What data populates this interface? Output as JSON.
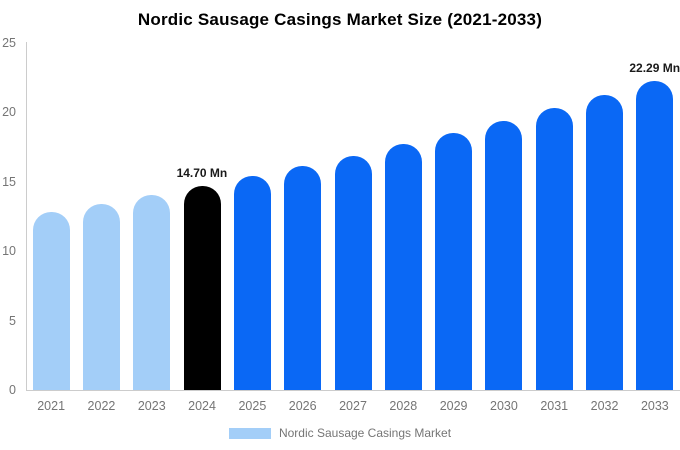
{
  "title": "Nordic Sausage Casings Market Size (2021-2033)",
  "legend": {
    "label": "Nordic Sausage Casings Market",
    "swatch_color": "#a3cef8"
  },
  "colors": {
    "historical_bar": "#a3cef8",
    "base_year_bar": "#000000",
    "forecast_bar": "#0a68f5",
    "axis_line": "#cccccc",
    "axis_text": "#757575",
    "data_label_text": "#1a1a1a"
  },
  "chart_data": {
    "type": "bar",
    "title": "Nordic Sausage Casings Market Size (2021-2033)",
    "categories": [
      "2021",
      "2022",
      "2023",
      "2024",
      "2025",
      "2026",
      "2027",
      "2028",
      "2029",
      "2030",
      "2031",
      "2032",
      "2033"
    ],
    "values": [
      12.8,
      13.4,
      14.04,
      14.7,
      15.4,
      16.12,
      16.89,
      17.69,
      18.52,
      19.4,
      20.32,
      21.28,
      22.29
    ],
    "bar_colors": [
      "#a3cef8",
      "#a3cef8",
      "#a3cef8",
      "#000000",
      "#0a68f5",
      "#0a68f5",
      "#0a68f5",
      "#0a68f5",
      "#0a68f5",
      "#0a68f5",
      "#0a68f5",
      "#0a68f5",
      "#0a68f5"
    ],
    "annotations": [
      {
        "category": "2024",
        "text": "14.70 Mn"
      },
      {
        "category": "2033",
        "text": "22.29 Mn"
      }
    ],
    "unit": "Mn",
    "xlabel": "",
    "ylabel": "",
    "ylim": [
      0,
      25
    ],
    "yticks": [
      0,
      5,
      10,
      15,
      20,
      25
    ],
    "grid": false,
    "legend_position": "bottom"
  }
}
